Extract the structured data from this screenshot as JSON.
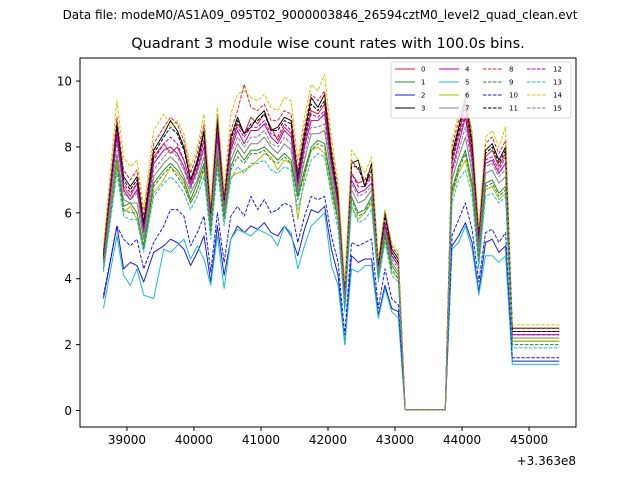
{
  "suptitle": "Data file: modeM0/AS1A09_095T02_9000003846_26594cztM0_level2_quad_clean.evt",
  "chart_data": {
    "type": "line",
    "title": "Quadrant 3 module wise count rates with 100.0s bins.",
    "xlabel": "",
    "ylabel": "",
    "x_offset_label": "+3.363e8",
    "xlim": [
      38300,
      45700
    ],
    "ylim": [
      -0.5,
      10.7
    ],
    "xticks": [
      39000,
      40000,
      41000,
      42000,
      43000,
      44000,
      45000
    ],
    "xtick_labels": [
      "39000",
      "40000",
      "41000",
      "42000",
      "43000",
      "44000",
      "45000"
    ],
    "yticks": [
      0,
      2,
      4,
      6,
      8,
      10
    ],
    "ytick_labels": [
      "0",
      "2",
      "4",
      "6",
      "8",
      "10"
    ],
    "grid": false,
    "legend_position": "top-right",
    "x": [
      38650,
      38850,
      38950,
      39050,
      39150,
      39250,
      39400,
      39550,
      39650,
      39750,
      39850,
      39950,
      40050,
      40150,
      40250,
      40350,
      40450,
      40550,
      40650,
      40750,
      40850,
      40950,
      41050,
      41150,
      41250,
      41350,
      41450,
      41550,
      41650,
      41750,
      41850,
      41950,
      42050,
      42150,
      42250,
      42350,
      42450,
      42550,
      42650,
      42750,
      42850,
      42950,
      43050,
      43150,
      43250,
      43350,
      43450,
      43550,
      43650,
      43750,
      43850,
      43950,
      44050,
      44150,
      44250,
      44350,
      44450,
      44550,
      44650,
      44750,
      44850,
      44950,
      45050,
      45150,
      45250,
      45350,
      45450
    ],
    "series": [
      {
        "name": "0",
        "color": "#d62020",
        "dash": "solid",
        "values": [
          4.7,
          8.4,
          6.8,
          6.5,
          6.9,
          5.6,
          7.7,
          8.1,
          7.8,
          8.0,
          7.6,
          6.9,
          7.5,
          8.2,
          5.9,
          8.6,
          6.2,
          8.0,
          8.7,
          8.4,
          8.9,
          8.7,
          9.0,
          8.6,
          8.2,
          8.6,
          8.4,
          6.9,
          8.2,
          9.1,
          9.0,
          9.3,
          7.6,
          6.3,
          3.6,
          7.2,
          6.9,
          7.0,
          7.1,
          4.4,
          5.7,
          4.8,
          4.5,
          0.02,
          0.02,
          0.02,
          0.02,
          0.02,
          0.02,
          0.02,
          7.6,
          8.4,
          9.2,
          7.8,
          5.2,
          7.7,
          7.9,
          7.4,
          7.8,
          2.4,
          2.4,
          2.4,
          2.4,
          2.4,
          2.4,
          2.4,
          2.4
        ]
      },
      {
        "name": "1",
        "color": "#2a8a2a",
        "dash": "solid",
        "values": [
          4.5,
          7.6,
          6.2,
          6.3,
          6.0,
          5.0,
          6.9,
          7.3,
          7.5,
          7.3,
          7.0,
          6.4,
          6.9,
          7.5,
          5.5,
          7.7,
          5.9,
          7.4,
          7.9,
          7.6,
          7.9,
          7.9,
          8.0,
          7.8,
          7.6,
          7.8,
          7.6,
          6.5,
          7.3,
          8.0,
          8.2,
          8.1,
          6.9,
          5.8,
          3.1,
          6.5,
          6.0,
          6.1,
          6.5,
          4.1,
          5.4,
          4.4,
          4.1,
          0.02,
          0.02,
          0.02,
          0.02,
          0.02,
          0.02,
          0.02,
          6.7,
          7.4,
          7.9,
          6.9,
          4.6,
          6.9,
          7.0,
          6.6,
          6.8,
          2.1,
          2.1,
          2.1,
          2.1,
          2.1,
          2.1,
          2.1,
          2.1
        ]
      },
      {
        "name": "2",
        "color": "#1a1ae0",
        "dash": "solid",
        "values": [
          3.4,
          5.6,
          4.3,
          4.5,
          4.4,
          3.9,
          4.8,
          5.0,
          5.2,
          5.1,
          4.9,
          4.4,
          4.8,
          5.3,
          3.9,
          5.6,
          4.1,
          5.2,
          5.6,
          5.4,
          5.6,
          5.5,
          5.7,
          5.4,
          5.3,
          5.6,
          5.3,
          4.7,
          5.5,
          6.1,
          6.0,
          6.2,
          4.9,
          4.1,
          2.0,
          4.7,
          4.5,
          4.6,
          4.6,
          2.9,
          3.8,
          3.1,
          3.0,
          0.02,
          0.02,
          0.02,
          0.02,
          0.02,
          0.02,
          0.02,
          5.0,
          5.3,
          5.7,
          5.1,
          3.6,
          5.1,
          5.2,
          4.8,
          5.0,
          1.5,
          1.5,
          1.5,
          1.5,
          1.5,
          1.5,
          1.5,
          1.5
        ]
      },
      {
        "name": "3",
        "color": "#000000",
        "dash": "solid",
        "values": [
          4.8,
          8.7,
          7.1,
          6.8,
          7.1,
          5.7,
          7.9,
          8.4,
          8.8,
          8.5,
          8.0,
          7.0,
          7.6,
          8.5,
          5.9,
          8.8,
          6.3,
          8.3,
          8.9,
          8.4,
          8.6,
          8.9,
          9.1,
          8.5,
          8.6,
          8.9,
          8.8,
          7.1,
          8.4,
          9.5,
          9.2,
          9.6,
          7.8,
          6.5,
          3.6,
          7.5,
          7.6,
          6.8,
          7.5,
          4.4,
          6.0,
          4.9,
          4.6,
          0.02,
          0.02,
          0.02,
          0.02,
          0.02,
          0.02,
          0.02,
          7.8,
          8.6,
          9.5,
          8.1,
          5.3,
          7.9,
          8.1,
          7.6,
          8.0,
          2.5,
          2.5,
          2.5,
          2.5,
          2.5,
          2.5,
          2.5,
          2.5
        ]
      },
      {
        "name": "4",
        "color": "#b000b0",
        "dash": "solid",
        "values": [
          4.6,
          8.3,
          6.7,
          6.4,
          6.7,
          5.4,
          7.5,
          7.9,
          8.0,
          7.8,
          7.4,
          6.8,
          7.3,
          8.0,
          5.8,
          8.3,
          6.1,
          7.9,
          8.5,
          8.1,
          8.5,
          8.5,
          8.7,
          8.3,
          8.1,
          8.5,
          8.3,
          6.8,
          8.0,
          8.8,
          8.8,
          9.0,
          7.4,
          6.2,
          3.4,
          7.0,
          6.6,
          6.7,
          6.9,
          4.3,
          5.6,
          4.7,
          4.4,
          0.02,
          0.02,
          0.02,
          0.02,
          0.02,
          0.02,
          0.02,
          7.3,
          8.1,
          8.9,
          7.6,
          5.0,
          7.5,
          7.6,
          7.2,
          7.5,
          2.3,
          2.3,
          2.3,
          2.3,
          2.3,
          2.3,
          2.3,
          2.3
        ]
      },
      {
        "name": "5",
        "color": "#17becf",
        "dash": "solid",
        "values": [
          3.1,
          5.3,
          4.1,
          3.8,
          4.3,
          3.5,
          3.4,
          4.9,
          4.8,
          5.0,
          5.2,
          4.6,
          5.0,
          4.6,
          3.8,
          5.3,
          3.7,
          5.2,
          5.5,
          5.4,
          5.3,
          5.5,
          5.4,
          5.3,
          5.0,
          5.6,
          5.4,
          4.3,
          5.0,
          5.6,
          5.8,
          6.0,
          4.4,
          3.8,
          2.0,
          4.3,
          4.2,
          4.4,
          4.4,
          2.8,
          3.7,
          3.0,
          2.8,
          0.02,
          0.02,
          0.02,
          0.02,
          0.02,
          0.02,
          0.02,
          4.9,
          5.1,
          5.6,
          4.9,
          3.5,
          4.7,
          4.7,
          4.5,
          4.7,
          1.4,
          1.4,
          1.4,
          1.4,
          1.4,
          1.4,
          1.4,
          1.4
        ]
      },
      {
        "name": "6",
        "color": "#b8b800",
        "dash": "solid",
        "values": [
          4.4,
          7.5,
          6.0,
          6.2,
          5.8,
          4.9,
          6.6,
          7.0,
          7.4,
          7.2,
          6.9,
          6.3,
          6.7,
          7.3,
          5.4,
          7.5,
          5.8,
          7.1,
          7.2,
          7.3,
          7.4,
          7.6,
          7.8,
          7.7,
          7.3,
          7.6,
          7.5,
          5.8,
          7.1,
          7.9,
          8.0,
          7.8,
          6.6,
          5.8,
          3.2,
          6.2,
          5.8,
          6.0,
          6.3,
          4.0,
          5.2,
          4.2,
          4.0,
          0.02,
          0.02,
          0.02,
          0.02,
          0.02,
          0.02,
          0.02,
          6.5,
          7.2,
          7.6,
          6.7,
          4.5,
          6.7,
          6.8,
          6.4,
          6.6,
          2.1,
          2.1,
          2.1,
          2.1,
          2.1,
          2.1,
          2.1,
          2.1
        ]
      },
      {
        "name": "7",
        "color": "#7f7f7f",
        "dash": "solid",
        "values": [
          4.5,
          7.8,
          6.4,
          6.3,
          6.3,
          5.2,
          7.1,
          7.5,
          7.7,
          7.5,
          7.1,
          6.6,
          7.0,
          7.7,
          5.6,
          7.9,
          6.0,
          7.6,
          8.1,
          7.8,
          8.1,
          8.1,
          8.3,
          8.0,
          7.8,
          8.1,
          7.9,
          6.6,
          7.6,
          8.4,
          8.4,
          8.5,
          7.1,
          6.0,
          3.3,
          6.7,
          6.3,
          6.4,
          6.7,
          4.2,
          5.5,
          4.5,
          4.2,
          0.02,
          0.02,
          0.02,
          0.02,
          0.02,
          0.02,
          0.02,
          7.0,
          7.7,
          8.3,
          7.2,
          4.8,
          7.2,
          7.3,
          6.9,
          7.1,
          2.2,
          2.2,
          2.2,
          2.2,
          2.2,
          2.2,
          2.2,
          2.2
        ]
      },
      {
        "name": "8",
        "color": "#e02020",
        "dash": "dashed",
        "values": [
          4.8,
          8.9,
          7.3,
          7.0,
          7.3,
          5.9,
          8.1,
          8.6,
          8.9,
          8.7,
          8.2,
          7.2,
          7.8,
          8.7,
          6.1,
          9.0,
          6.5,
          8.5,
          9.1,
          9.9,
          9.2,
          9.1,
          9.3,
          8.8,
          8.8,
          9.1,
          9.0,
          7.3,
          8.6,
          9.6,
          9.4,
          9.7,
          8.0,
          6.7,
          3.7,
          7.6,
          7.3,
          7.0,
          7.4,
          4.5,
          6.1,
          5.0,
          4.7,
          0.02,
          0.02,
          0.02,
          0.02,
          0.02,
          0.02,
          0.02,
          8.0,
          8.8,
          9.6,
          8.3,
          5.4,
          8.1,
          8.3,
          7.8,
          8.2,
          2.5,
          2.5,
          2.5,
          2.5,
          2.5,
          2.5,
          2.5,
          2.5
        ]
      },
      {
        "name": "9",
        "color": "#2a8a2a",
        "dash": "dashed",
        "values": [
          4.3,
          7.4,
          6.1,
          6.0,
          6.0,
          4.9,
          6.8,
          7.2,
          7.4,
          7.1,
          6.8,
          6.3,
          6.7,
          7.4,
          5.4,
          7.6,
          5.8,
          7.3,
          7.7,
          7.5,
          7.8,
          7.8,
          7.9,
          7.6,
          7.5,
          7.7,
          7.5,
          6.4,
          7.2,
          7.9,
          8.1,
          8.0,
          6.8,
          5.7,
          3.1,
          6.4,
          5.9,
          6.0,
          6.4,
          4.0,
          5.3,
          4.3,
          4.0,
          0.02,
          0.02,
          0.02,
          0.02,
          0.02,
          0.02,
          0.02,
          6.6,
          7.3,
          7.8,
          6.8,
          4.5,
          6.8,
          6.9,
          6.5,
          6.7,
          2.0,
          2.0,
          2.0,
          2.0,
          2.0,
          2.0,
          2.0,
          2.0
        ]
      },
      {
        "name": "10",
        "color": "#1a1ae0",
        "dash": "dashed",
        "values": [
          3.5,
          5.6,
          5.2,
          5.0,
          5.2,
          4.3,
          5.1,
          5.6,
          6.1,
          6.1,
          5.9,
          5.0,
          5.4,
          5.9,
          4.2,
          6.0,
          4.5,
          5.9,
          6.2,
          5.9,
          6.5,
          6.1,
          6.4,
          6.0,
          6.1,
          6.3,
          6.2,
          5.1,
          5.9,
          6.5,
          6.4,
          6.5,
          5.3,
          4.5,
          2.3,
          5.1,
          5.0,
          5.1,
          5.2,
          3.1,
          4.3,
          3.4,
          3.2,
          0.02,
          0.02,
          0.02,
          0.02,
          0.02,
          0.02,
          0.02,
          5.3,
          5.8,
          6.3,
          5.5,
          3.9,
          5.4,
          5.5,
          5.1,
          5.4,
          1.6,
          1.6,
          1.6,
          1.6,
          1.6,
          1.6,
          1.6,
          1.6
        ]
      },
      {
        "name": "11",
        "color": "#000000",
        "dash": "dashed",
        "values": [
          4.7,
          8.6,
          7.0,
          6.7,
          7.0,
          5.6,
          7.8,
          8.3,
          8.6,
          8.4,
          7.9,
          7.0,
          7.5,
          8.4,
          5.9,
          8.7,
          6.3,
          8.2,
          8.8,
          8.4,
          8.7,
          8.8,
          9.0,
          8.5,
          8.5,
          8.8,
          8.7,
          7.0,
          8.3,
          9.3,
          9.1,
          9.4,
          7.7,
          6.4,
          3.5,
          7.4,
          7.4,
          6.8,
          7.3,
          4.4,
          5.9,
          4.8,
          4.5,
          0.02,
          0.02,
          0.02,
          0.02,
          0.02,
          0.02,
          0.02,
          7.7,
          8.5,
          9.4,
          8.0,
          5.2,
          7.8,
          8.0,
          7.5,
          7.9,
          2.4,
          2.4,
          2.4,
          2.4,
          2.4,
          2.4,
          2.4,
          2.4
        ]
      },
      {
        "name": "12",
        "color": "#b000b0",
        "dash": "dashed",
        "values": [
          4.6,
          8.5,
          6.9,
          6.6,
          6.9,
          5.5,
          7.6,
          8.1,
          8.3,
          8.1,
          7.6,
          6.9,
          7.4,
          8.2,
          5.8,
          8.5,
          6.2,
          8.1,
          8.6,
          8.3,
          8.6,
          8.6,
          8.8,
          8.4,
          8.3,
          8.7,
          8.5,
          6.9,
          8.1,
          9.0,
          8.9,
          9.1,
          7.5,
          6.3,
          3.5,
          7.2,
          6.8,
          6.8,
          7.1,
          4.3,
          5.7,
          4.7,
          4.4,
          0.02,
          0.02,
          0.02,
          0.02,
          0.02,
          0.02,
          0.02,
          7.5,
          8.3,
          9.0,
          7.8,
          5.1,
          7.6,
          7.7,
          7.3,
          7.7,
          2.3,
          2.3,
          2.3,
          2.3,
          2.3,
          2.3,
          2.3,
          2.3
        ]
      },
      {
        "name": "13",
        "color": "#17becf",
        "dash": "dashed",
        "values": [
          4.2,
          7.2,
          5.9,
          5.8,
          5.8,
          4.8,
          6.5,
          6.9,
          7.1,
          6.9,
          6.6,
          6.1,
          6.5,
          7.1,
          5.2,
          7.3,
          5.6,
          7.0,
          7.4,
          7.2,
          7.5,
          7.5,
          7.6,
          7.3,
          7.2,
          7.4,
          7.3,
          6.1,
          6.9,
          7.6,
          7.8,
          7.7,
          6.5,
          5.5,
          3.0,
          6.2,
          5.7,
          5.8,
          6.1,
          3.9,
          5.1,
          4.1,
          3.9,
          0.02,
          0.02,
          0.02,
          0.02,
          0.02,
          0.02,
          0.02,
          6.3,
          7.0,
          7.3,
          6.5,
          4.3,
          6.5,
          6.6,
          6.3,
          6.5,
          1.9,
          1.9,
          1.9,
          1.9,
          1.9,
          1.9,
          1.9,
          1.9
        ]
      },
      {
        "name": "14",
        "color": "#c8c800",
        "dash": "dashed",
        "values": [
          5.0,
          9.4,
          7.7,
          7.4,
          7.6,
          6.1,
          8.5,
          9.0,
          8.6,
          8.8,
          8.4,
          7.4,
          8.0,
          9.0,
          6.3,
          9.2,
          6.7,
          9.0,
          9.6,
          9.7,
          9.5,
          9.4,
          9.6,
          9.2,
          9.1,
          9.5,
          9.4,
          7.6,
          8.9,
          9.9,
          9.7,
          10.2,
          8.3,
          6.9,
          3.9,
          7.9,
          7.6,
          7.2,
          7.7,
          4.6,
          6.1,
          5.1,
          4.8,
          0.02,
          0.02,
          0.02,
          0.02,
          0.02,
          0.02,
          0.02,
          8.2,
          9.0,
          9.5,
          8.5,
          5.6,
          8.3,
          8.5,
          8.0,
          8.6,
          2.6,
          2.6,
          2.6,
          2.6,
          2.6,
          2.6,
          2.6,
          2.6
        ]
      },
      {
        "name": "15",
        "color": "#7f7f7f",
        "dash": "dashed",
        "values": [
          4.5,
          8.1,
          6.6,
          6.4,
          6.6,
          5.3,
          7.3,
          7.7,
          7.9,
          7.7,
          7.3,
          6.7,
          7.2,
          7.9,
          5.7,
          8.1,
          6.1,
          7.8,
          8.3,
          8.0,
          8.3,
          8.3,
          8.5,
          8.1,
          8.0,
          8.3,
          8.1,
          6.7,
          7.8,
          8.6,
          8.6,
          8.7,
          7.3,
          6.1,
          3.4,
          6.9,
          6.5,
          6.6,
          6.8,
          4.2,
          5.5,
          4.6,
          4.3,
          0.02,
          0.02,
          0.02,
          0.02,
          0.02,
          0.02,
          0.02,
          7.2,
          7.9,
          8.6,
          7.4,
          4.9,
          7.4,
          7.5,
          7.1,
          7.3,
          2.2,
          2.2,
          2.2,
          2.2,
          2.2,
          2.2,
          2.2,
          2.2
        ]
      }
    ]
  }
}
